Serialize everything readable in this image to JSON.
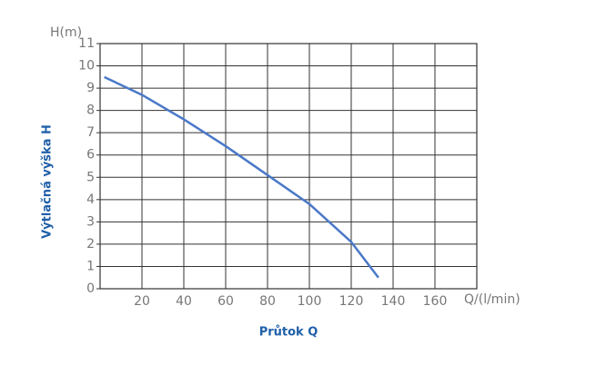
{
  "chart_data": {
    "type": "line",
    "y_label": "H(m)",
    "x_label": "Q/(l/min)",
    "y_title": "Výtlačná výška H",
    "x_title": "Průtok Q",
    "x": [
      2,
      20,
      40,
      60,
      80,
      100,
      120,
      133
    ],
    "series": [
      {
        "name": "H",
        "color": "#4a78c8",
        "values": [
          9.5,
          8.7,
          7.6,
          6.4,
          5.1,
          3.8,
          2.1,
          0.5
        ]
      }
    ],
    "xlim": [
      0,
      180
    ],
    "xticks": [
      20,
      40,
      60,
      80,
      100,
      120,
      140,
      160
    ],
    "ylim": [
      0,
      11
    ],
    "yticks": [
      0,
      1,
      2,
      3,
      4,
      5,
      6,
      7,
      8,
      9,
      10,
      11
    ],
    "grid": true
  }
}
